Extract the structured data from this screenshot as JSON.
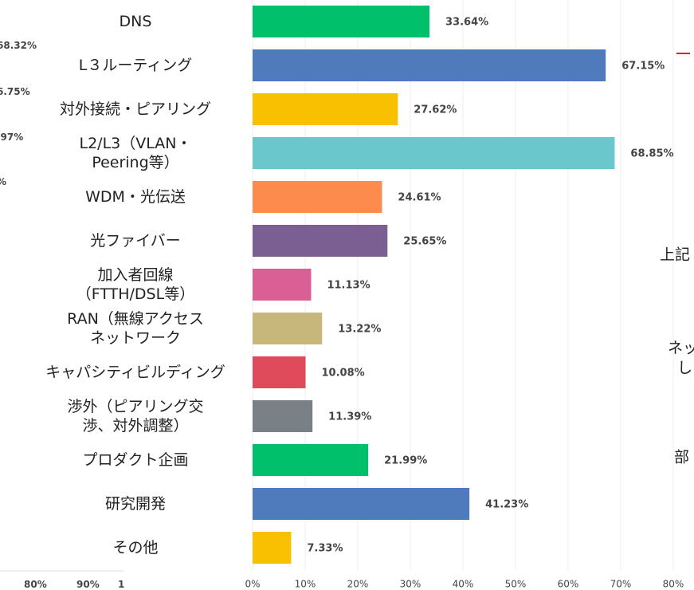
{
  "chart_data": {
    "type": "barh",
    "categories": [
      "DNS",
      "L３ルーティング",
      "対外接続・ピアリング",
      "L2/L3（VLAN・\nPeering等）",
      "WDM・光伝送",
      "光ファイバー",
      "加入者回線\n（FTTH/DSL等）",
      "RAN（無線アクセス\nネットワーク",
      "キャパシティビルディング",
      "渉外（ピアリング交\n渉、対外調整）",
      "プロダクト企画",
      "研究開発",
      "その他"
    ],
    "values": [
      33.64,
      67.15,
      27.62,
      68.85,
      24.61,
      25.65,
      11.13,
      13.22,
      10.08,
      11.39,
      21.99,
      41.23,
      7.33
    ],
    "value_labels": [
      "33.64%",
      "67.15%",
      "27.62%",
      "68.85%",
      "24.61%",
      "25.65%",
      "11.13%",
      "13.22%",
      "10.08%",
      "11.39%",
      "21.99%",
      "41.23%",
      "7.33%"
    ],
    "colors": [
      "#00c06b",
      "#4f7bbd",
      "#f8c000",
      "#6ac8cc",
      "#fd8b4e",
      "#7b5f93",
      "#d95f94",
      "#c8b77a",
      "#e04b5b",
      "#7a8186",
      "#00c06b",
      "#4f7bbd",
      "#f8c000"
    ],
    "xlim": [
      0,
      80
    ],
    "xticks": [
      {
        "value": 0,
        "label": "0%"
      },
      {
        "value": 10,
        "label": "10%"
      },
      {
        "value": 20,
        "label": "20%"
      },
      {
        "value": 30,
        "label": "30%"
      },
      {
        "value": 40,
        "label": "40%"
      },
      {
        "value": 50,
        "label": "50%"
      },
      {
        "value": 60,
        "label": "60%"
      },
      {
        "value": 70,
        "label": "70%"
      },
      {
        "value": 80,
        "label": "80%"
      }
    ],
    "grid": true
  },
  "left_panel_fragments": [
    "68.32%",
    "6.75%",
    ".97%",
    "%",
    "80%",
    "90%",
    "1"
  ],
  "right_panel_fragments": [
    "上記",
    "ネッ",
    "し",
    "部"
  ]
}
